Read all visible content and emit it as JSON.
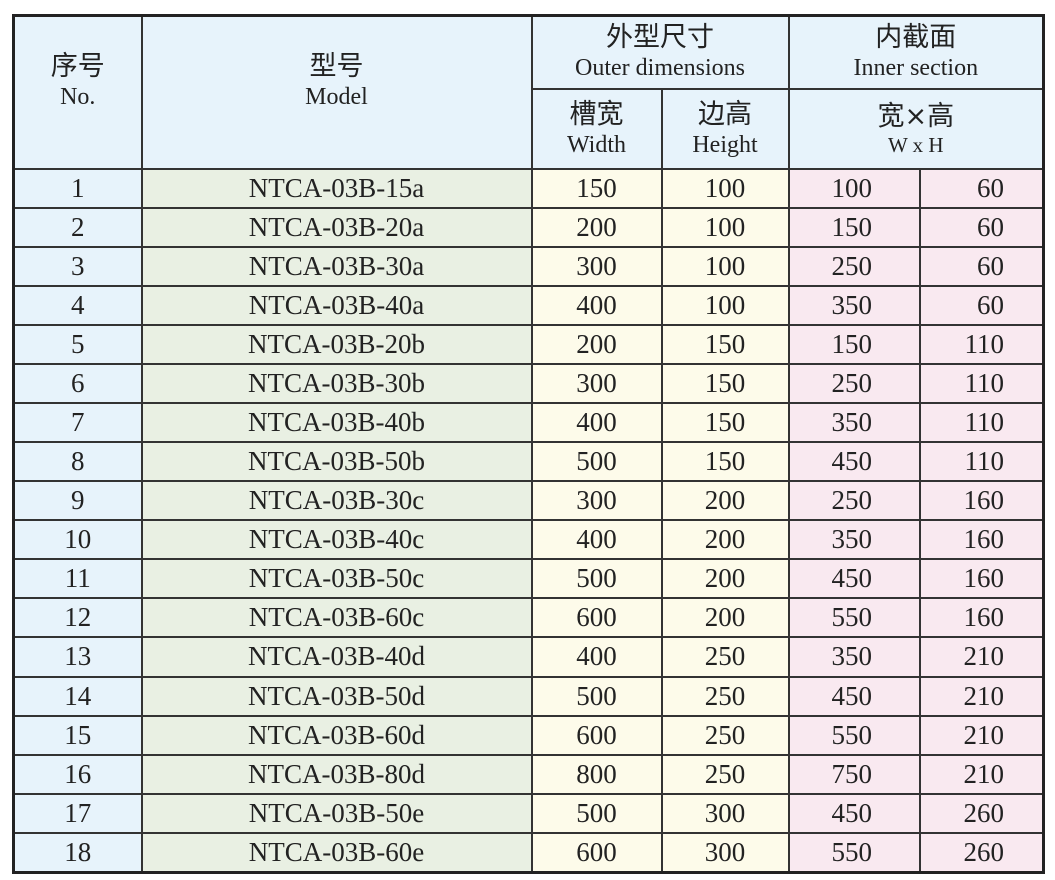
{
  "header": {
    "no_cn": "序号",
    "no_en": "No.",
    "model_cn": "型号",
    "model_en": "Model",
    "outer_cn": "外型尺寸",
    "outer_en": "Outer dimensions",
    "inner_cn": "内截面",
    "inner_en": "Inner section",
    "width_cn": "槽宽",
    "width_en": "Width",
    "height_cn": "边高",
    "height_en": "Height",
    "wh_cn": "宽×高",
    "wh_en": "W x H"
  },
  "colors": {
    "header": "#e7f3fb",
    "model": "#e9f0e3",
    "outer": "#fdfbea",
    "inner": "#f9e9f0"
  },
  "rows": [
    {
      "no": "1",
      "model": "NTCA-03B-15a",
      "width": "150",
      "height": "100",
      "inner_w": "100",
      "inner_h": "60"
    },
    {
      "no": "2",
      "model": "NTCA-03B-20a",
      "width": "200",
      "height": "100",
      "inner_w": "150",
      "inner_h": "60"
    },
    {
      "no": "3",
      "model": "NTCA-03B-30a",
      "width": "300",
      "height": "100",
      "inner_w": "250",
      "inner_h": "60"
    },
    {
      "no": "4",
      "model": "NTCA-03B-40a",
      "width": "400",
      "height": "100",
      "inner_w": "350",
      "inner_h": "60"
    },
    {
      "no": "5",
      "model": "NTCA-03B-20b",
      "width": "200",
      "height": "150",
      "inner_w": "150",
      "inner_h": "110"
    },
    {
      "no": "6",
      "model": "NTCA-03B-30b",
      "width": "300",
      "height": "150",
      "inner_w": "250",
      "inner_h": "110"
    },
    {
      "no": "7",
      "model": "NTCA-03B-40b",
      "width": "400",
      "height": "150",
      "inner_w": "350",
      "inner_h": "110"
    },
    {
      "no": "8",
      "model": "NTCA-03B-50b",
      "width": "500",
      "height": "150",
      "inner_w": "450",
      "inner_h": "110"
    },
    {
      "no": "9",
      "model": "NTCA-03B-30c",
      "width": "300",
      "height": "200",
      "inner_w": "250",
      "inner_h": "160"
    },
    {
      "no": "10",
      "model": "NTCA-03B-40c",
      "width": "400",
      "height": "200",
      "inner_w": "350",
      "inner_h": "160"
    },
    {
      "no": "11",
      "model": "NTCA-03B-50c",
      "width": "500",
      "height": "200",
      "inner_w": "450",
      "inner_h": "160"
    },
    {
      "no": "12",
      "model": "NTCA-03B-60c",
      "width": "600",
      "height": "200",
      "inner_w": "550",
      "inner_h": "160"
    },
    {
      "no": "13",
      "model": "NTCA-03B-40d",
      "width": "400",
      "height": "250",
      "inner_w": "350",
      "inner_h": "210"
    },
    {
      "no": "14",
      "model": "NTCA-03B-50d",
      "width": "500",
      "height": "250",
      "inner_w": "450",
      "inner_h": "210"
    },
    {
      "no": "15",
      "model": "NTCA-03B-60d",
      "width": "600",
      "height": "250",
      "inner_w": "550",
      "inner_h": "210"
    },
    {
      "no": "16",
      "model": "NTCA-03B-80d",
      "width": "800",
      "height": "250",
      "inner_w": "750",
      "inner_h": "210"
    },
    {
      "no": "17",
      "model": "NTCA-03B-50e",
      "width": "500",
      "height": "300",
      "inner_w": "450",
      "inner_h": "260"
    },
    {
      "no": "18",
      "model": "NTCA-03B-60e",
      "width": "600",
      "height": "300",
      "inner_w": "550",
      "inner_h": "260"
    }
  ]
}
